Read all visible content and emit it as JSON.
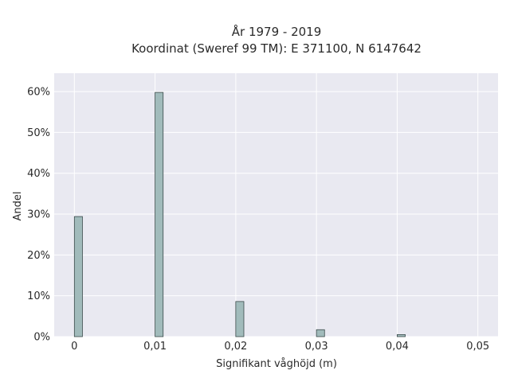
{
  "chart_data": {
    "type": "bar",
    "title_line1": "År 1979 - 2019",
    "title_line2": "Koordinat (Sweref 99 TM): E 371100, N 6147642",
    "xlabel": "Signifikant våghöjd (m)",
    "ylabel": "Andel",
    "x": [
      0,
      0.01,
      0.02,
      0.03,
      0.04
    ],
    "values": [
      0.294,
      0.598,
      0.086,
      0.017,
      0.005
    ],
    "xlim": [
      -0.0025,
      0.0525
    ],
    "ylim": [
      0,
      0.645
    ],
    "x_ticks": [
      0,
      0.01,
      0.02,
      0.03,
      0.04,
      0.05
    ],
    "x_tick_labels": [
      "0",
      "0,01",
      "0,02",
      "0,03",
      "0,04",
      "0,05"
    ],
    "y_ticks": [
      0,
      0.1,
      0.2,
      0.3,
      0.4,
      0.5,
      0.6
    ],
    "y_tick_labels": [
      "0%",
      "10%",
      "20%",
      "30%",
      "40%",
      "50%",
      "60%"
    ],
    "grid": true,
    "colors": {
      "plot_bg": "#e9e9f1",
      "grid": "#ffffff",
      "bar_fill": "#a1bbbb",
      "bar_stroke": "#3a4a4a"
    }
  }
}
